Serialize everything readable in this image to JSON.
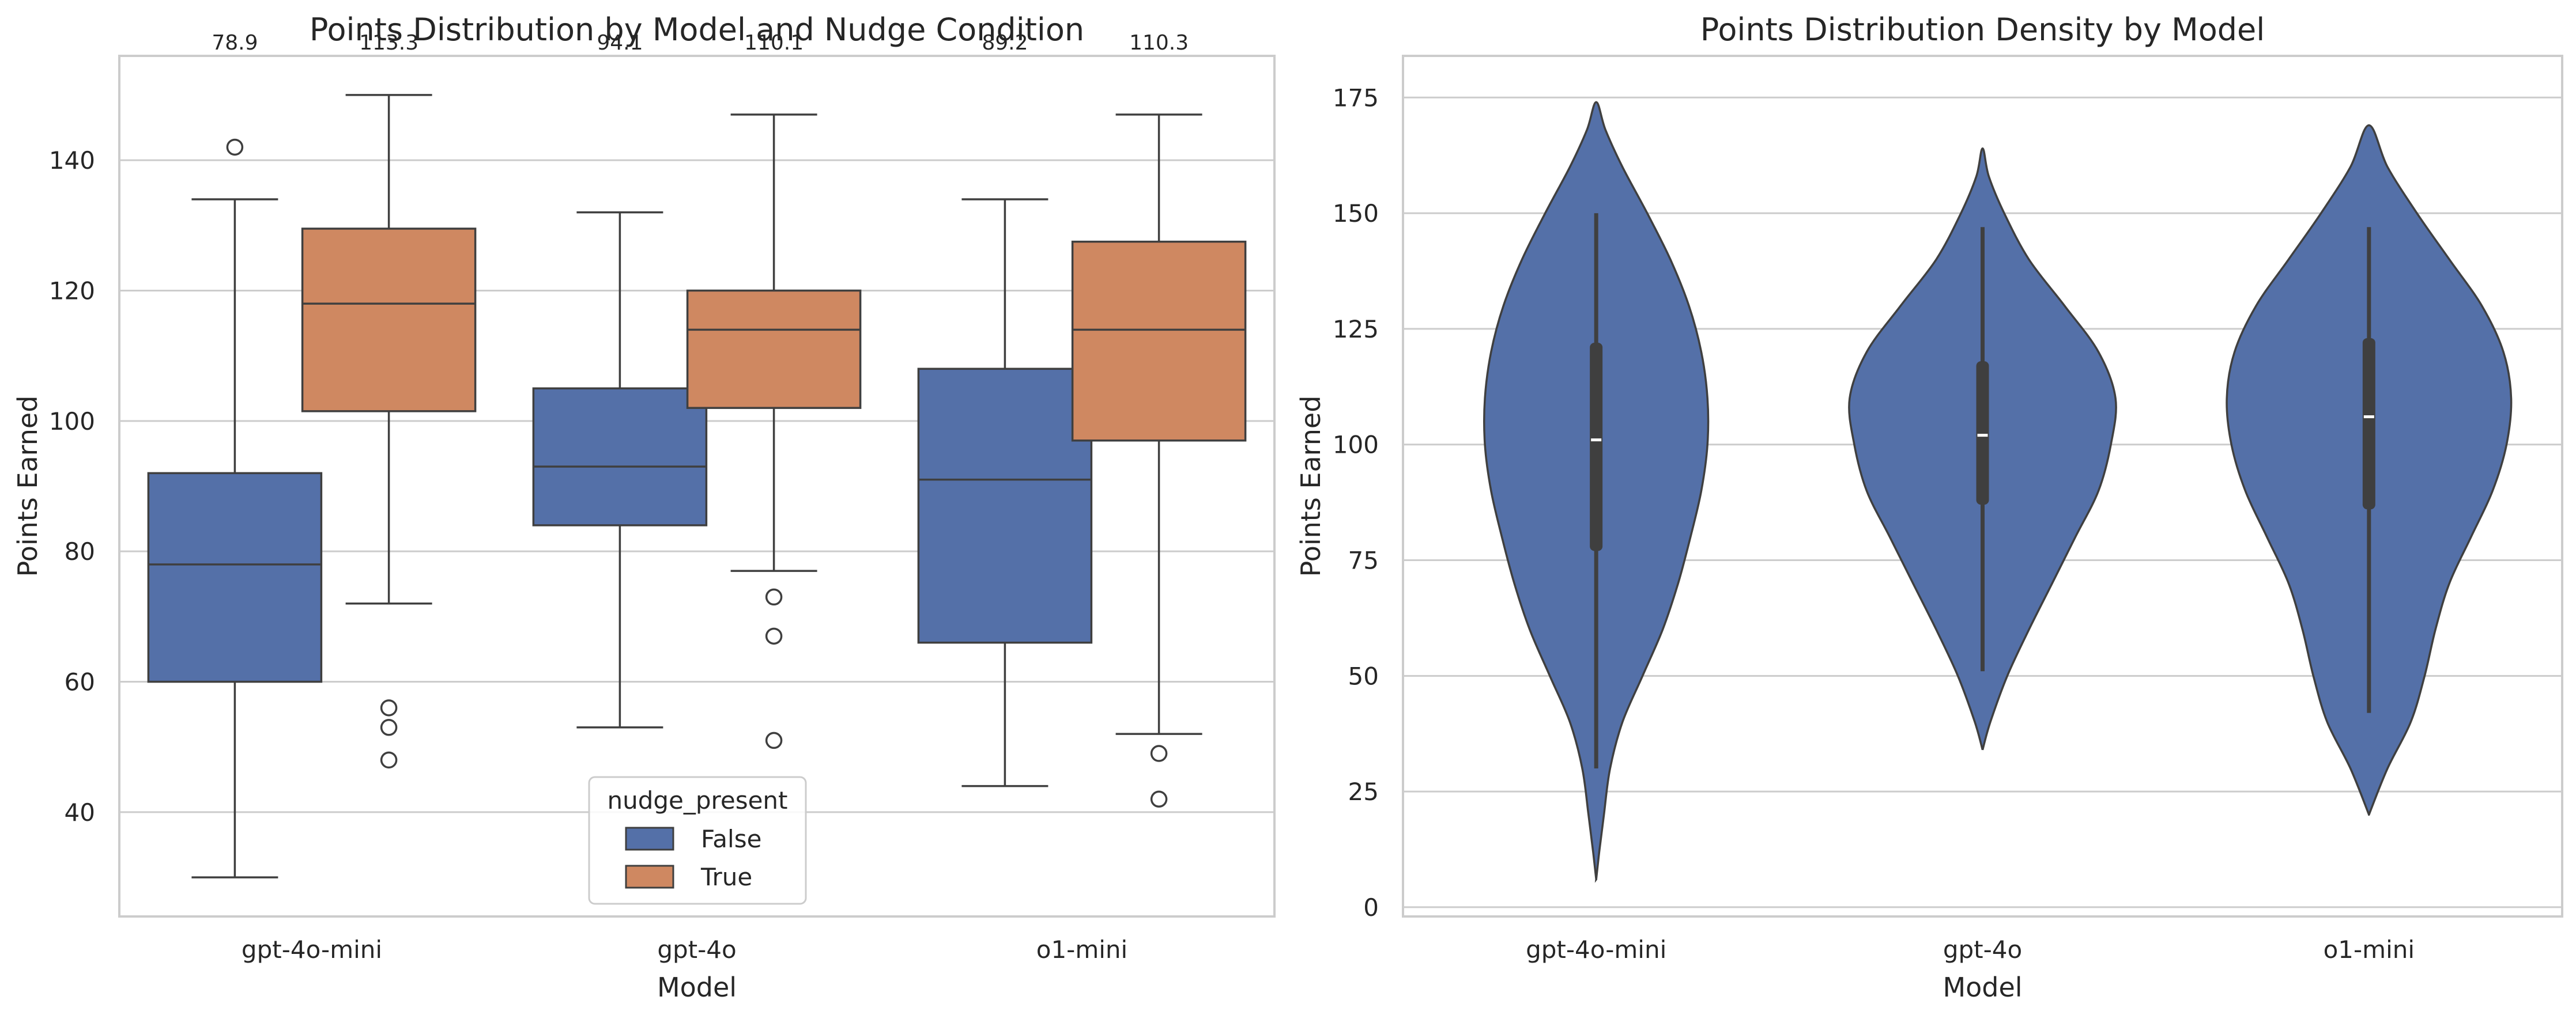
{
  "colors": {
    "false": "#5470a8",
    "true": "#cf8861",
    "violin": "#5470a8",
    "edge": "#3f3f3f",
    "grid": "#cccccc",
    "spine": "#cccccc",
    "text": "#262626"
  },
  "chart_data": [
    {
      "type": "box",
      "title": "Points Distribution by Model and Nudge Condition",
      "xlabel": "Model",
      "ylabel": "Points Earned",
      "categories": [
        "gpt-4o-mini",
        "gpt-4o",
        "o1-mini"
      ],
      "ylim": [
        24,
        156
      ],
      "yticks": [
        40,
        60,
        80,
        100,
        120,
        140
      ],
      "grid": "horizontal",
      "legend": {
        "title": "nudge_present",
        "placement": "bottom-center",
        "entries": [
          "False",
          "True"
        ]
      },
      "series": [
        {
          "name": "False",
          "boxes": [
            {
              "whisker_low": 30,
              "q1": 60,
              "median": 78,
              "q3": 92,
              "whisker_high": 134,
              "outliers": [
                142
              ]
            },
            {
              "whisker_low": 53,
              "q1": 84,
              "median": 93,
              "q3": 105,
              "whisker_high": 132,
              "outliers": []
            },
            {
              "whisker_low": 44,
              "q1": 66,
              "median": 91,
              "q3": 108,
              "whisker_high": 134,
              "outliers": []
            }
          ],
          "mean_labels": [
            "78.9",
            "94.1",
            "89.2"
          ]
        },
        {
          "name": "True",
          "boxes": [
            {
              "whisker_low": 72,
              "q1": 101.5,
              "median": 118,
              "q3": 129.5,
              "whisker_high": 150,
              "outliers": [
                56,
                53,
                48
              ]
            },
            {
              "whisker_low": 77,
              "q1": 102,
              "median": 114,
              "q3": 120,
              "whisker_high": 147,
              "outliers": [
                73,
                67,
                51
              ]
            },
            {
              "whisker_low": 52,
              "q1": 97,
              "median": 114,
              "q3": 127.5,
              "whisker_high": 147,
              "outliers": [
                49,
                42
              ]
            }
          ],
          "mean_labels": [
            "113.3",
            "110.1",
            "110.3"
          ]
        }
      ]
    },
    {
      "type": "violin",
      "title": "Points Distribution Density by Model",
      "xlabel": "Model",
      "ylabel": "Points Earned",
      "categories": [
        "gpt-4o-mini",
        "gpt-4o",
        "o1-mini"
      ],
      "ylim": [
        -2,
        184
      ],
      "yticks": [
        0,
        25,
        50,
        75,
        100,
        125,
        150,
        175
      ],
      "grid": "horizontal",
      "violins": [
        {
          "whisker_low": 30,
          "q1": 77,
          "median": 101,
          "q3": 122,
          "whisker_high": 150,
          "profile": [
            [
              6,
              0
            ],
            [
              12,
              0.02
            ],
            [
              20,
              0.05
            ],
            [
              30,
              0.09
            ],
            [
              40,
              0.17
            ],
            [
              50,
              0.3
            ],
            [
              60,
              0.43
            ],
            [
              70,
              0.53
            ],
            [
              80,
              0.61
            ],
            [
              90,
              0.68
            ],
            [
              100,
              0.72
            ],
            [
              110,
              0.72
            ],
            [
              120,
              0.68
            ],
            [
              130,
              0.6
            ],
            [
              140,
              0.48
            ],
            [
              150,
              0.33
            ],
            [
              160,
              0.17
            ],
            [
              168,
              0.06
            ],
            [
              174,
              0
            ]
          ]
        },
        {
          "whisker_low": 51,
          "q1": 87,
          "median": 102,
          "q3": 118,
          "whisker_high": 147,
          "profile": [
            [
              34,
              0
            ],
            [
              40,
              0.05
            ],
            [
              50,
              0.16
            ],
            [
              60,
              0.3
            ],
            [
              70,
              0.45
            ],
            [
              80,
              0.6
            ],
            [
              90,
              0.75
            ],
            [
              100,
              0.83
            ],
            [
              110,
              0.86
            ],
            [
              120,
              0.75
            ],
            [
              130,
              0.53
            ],
            [
              140,
              0.3
            ],
            [
              150,
              0.14
            ],
            [
              158,
              0.04
            ],
            [
              164,
              0
            ]
          ]
        },
        {
          "whisker_low": 42,
          "q1": 86,
          "median": 106,
          "q3": 123,
          "whisker_high": 147,
          "profile": [
            [
              20,
              0
            ],
            [
              30,
              0.12
            ],
            [
              40,
              0.27
            ],
            [
              50,
              0.36
            ],
            [
              60,
              0.43
            ],
            [
              70,
              0.52
            ],
            [
              80,
              0.66
            ],
            [
              90,
              0.8
            ],
            [
              100,
              0.89
            ],
            [
              110,
              0.92
            ],
            [
              120,
              0.87
            ],
            [
              130,
              0.73
            ],
            [
              140,
              0.52
            ],
            [
              150,
              0.31
            ],
            [
              160,
              0.12
            ],
            [
              169,
              0
            ]
          ]
        }
      ]
    }
  ]
}
